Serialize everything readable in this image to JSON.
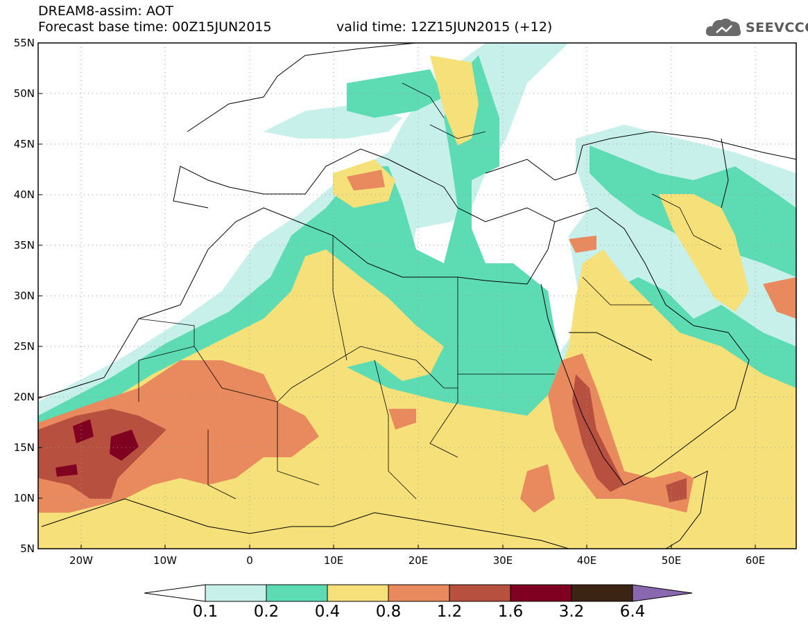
{
  "header": {
    "title": "DREAM8-assim: AOT",
    "base_time": "Forecast base time: 00Z15JUN2015",
    "valid_time": "valid time: 12Z15JUN2015 (+12)"
  },
  "logo": {
    "text": "SEEVCCC",
    "icon": "cloud-icon"
  },
  "axes": {
    "lat_labels": [
      "55N",
      "50N",
      "45N",
      "40N",
      "35N",
      "30N",
      "25N",
      "20N",
      "15N",
      "10N",
      "5N"
    ],
    "lon_labels": [
      "20W",
      "10W",
      "0",
      "10E",
      "20E",
      "30E",
      "40E",
      "50E",
      "60E"
    ]
  },
  "colorbar": {
    "labels": [
      "0.1",
      "0.2",
      "0.4",
      "0.8",
      "1.2",
      "1.6",
      "3.2",
      "6.4"
    ],
    "colors": [
      "#ffffff",
      "#c8f0ea",
      "#5ddcb4",
      "#f5e07a",
      "#e88a5e",
      "#b85040",
      "#800022",
      "#3c2414",
      "#8a68b0"
    ]
  }
}
